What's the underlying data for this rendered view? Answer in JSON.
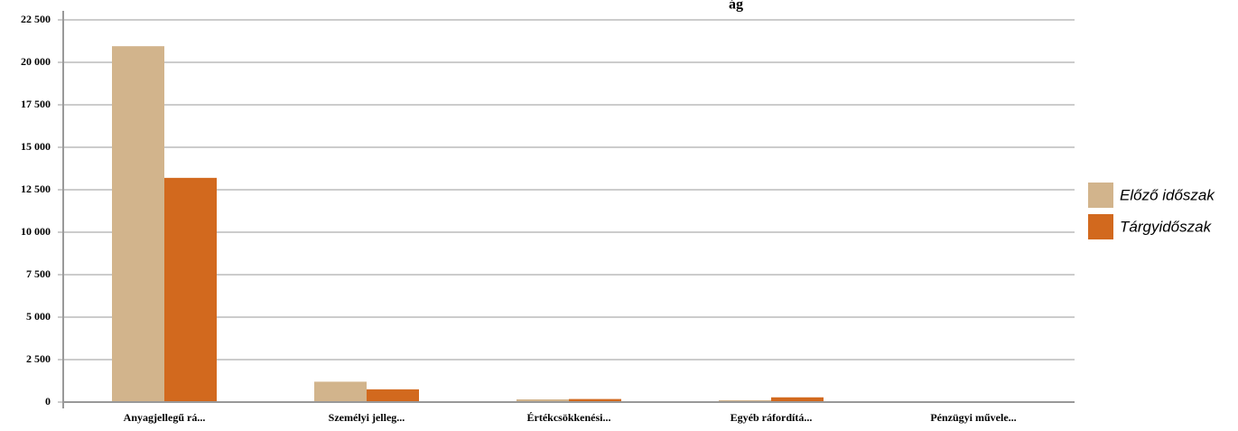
{
  "chart_data": {
    "type": "bar",
    "title": "ág",
    "xlabel": "",
    "ylabel": "",
    "ylim": [
      0,
      22500
    ],
    "yticks": [
      0,
      2500,
      5000,
      7500,
      10000,
      12500,
      15000,
      17500,
      20000,
      22500
    ],
    "ytick_labels": [
      "0",
      "2 500",
      "5 000",
      "7 500",
      "10 000",
      "12 500",
      "15 000",
      "17 500",
      "20 000",
      "22 500"
    ],
    "categories": [
      "Anyagjellegű rá...",
      "Személyi jelleg...",
      "Értékcsökkenési...",
      "Egyéb ráfordítá...",
      "Pénzügyi művele..."
    ],
    "series": [
      {
        "name": "Előző időszak",
        "color": "#D2B48C",
        "values": [
          20950,
          1200,
          160,
          110,
          0
        ]
      },
      {
        "name": "Tárgyidőszak",
        "color": "#D2691E",
        "values": [
          13200,
          750,
          180,
          280,
          0
        ]
      }
    ],
    "grid": true,
    "legend_position": "right"
  }
}
